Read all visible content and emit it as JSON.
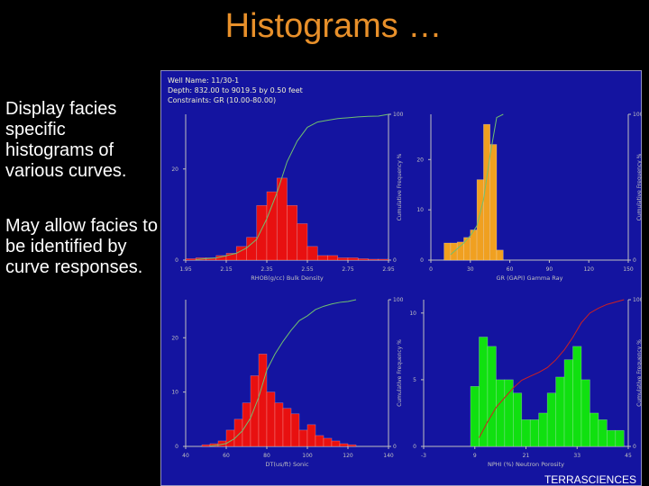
{
  "title": "Histograms …",
  "bullets": [
    "Display facies specific histograms of various curves.",
    "May allow facies to be identified by curve responses."
  ],
  "header": [
    "Well Name:      11/30-1",
    "Depth:  832.00 to 9019.5 by  0.50 feet",
    "Constraints:  GR (10.00-80.00)"
  ],
  "footer": "TERRASCIENCES",
  "chart_data": [
    {
      "type": "histogram",
      "x_label": "RHOB(g/cc)    Bulk Density",
      "y2_label": "Cumulative Frequency %",
      "color": "#e81010",
      "line_color": "#70c070",
      "bins": [
        1.95,
        2.0,
        2.05,
        2.1,
        2.15,
        2.2,
        2.25,
        2.3,
        2.35,
        2.4,
        2.45,
        2.5,
        2.55,
        2.6,
        2.65,
        2.7,
        2.75,
        2.8,
        2.85,
        2.9,
        2.95
      ],
      "counts": [
        0.3,
        0.5,
        0.5,
        1,
        1.5,
        3,
        5,
        12,
        15,
        18,
        12,
        8,
        3,
        1,
        1,
        0.5,
        0.5,
        0.3,
        0.2,
        0.2
      ],
      "cumulative": [
        0.4,
        1,
        1.5,
        3,
        4.7,
        8.3,
        14.2,
        28.4,
        46.2,
        67.5,
        81.7,
        91.1,
        94.7,
        95.9,
        97.1,
        97.6,
        98.2,
        98.6,
        98.8,
        100
      ],
      "xlim": [
        1.95,
        2.95
      ],
      "xticks": [
        1.95,
        2.15,
        2.35,
        2.55,
        2.75,
        2.95
      ],
      "ylim": [
        0,
        32
      ],
      "yticks": [
        0,
        20
      ],
      "y2lim": [
        0,
        100
      ],
      "y2ticks": [
        0,
        100
      ]
    },
    {
      "type": "histogram",
      "x_label": "GR (GAPI)    Gamma Ray",
      "y2_label": "Cumulative Frequency %",
      "color": "#f0a020",
      "line_color": "#70c070",
      "bins": [
        10,
        15,
        20,
        25,
        30,
        35,
        40,
        45,
        50,
        55
      ],
      "counts": [
        3.4,
        3.4,
        3.6,
        4.5,
        6,
        16,
        27,
        23,
        2
      ],
      "cumulative": [
        3.8,
        7.7,
        11.7,
        16.8,
        23.5,
        41.5,
        71.9,
        97.8,
        100
      ],
      "xlim": [
        0,
        150
      ],
      "xticks": [
        0,
        30,
        60,
        90,
        120,
        150
      ],
      "ylim": [
        0,
        29
      ],
      "yticks": [
        0,
        10,
        20
      ],
      "y2lim": [
        0,
        100
      ],
      "y2ticks": [
        0,
        100
      ]
    },
    {
      "type": "histogram",
      "x_label": "DT(us/ft)    Sonic",
      "y2_label": "Cumulative Frequency %",
      "color": "#e81010",
      "line_color": "#70c070",
      "bins": [
        48,
        52,
        56,
        60,
        64,
        68,
        72,
        76,
        80,
        84,
        88,
        92,
        96,
        100,
        104,
        108,
        112,
        116,
        120,
        124
      ],
      "counts": [
        0.3,
        0.5,
        1,
        3,
        5,
        8,
        13,
        17,
        10,
        8,
        7,
        6,
        3,
        4,
        2,
        1.5,
        1,
        0.5,
        0.3
      ],
      "cumulative": [
        0.3,
        0.9,
        2,
        5.2,
        10.7,
        19.4,
        33.5,
        52,
        62.9,
        71.6,
        79.2,
        85.7,
        89,
        93.3,
        95.5,
        97.1,
        98.2,
        98.8,
        100
      ],
      "xlim": [
        40,
        140
      ],
      "xticks": [
        40,
        60,
        80,
        100,
        120,
        140
      ],
      "ylim": [
        0,
        27
      ],
      "yticks": [
        0,
        10,
        20
      ],
      "y2lim": [
        0,
        100
      ],
      "y2ticks": [
        0,
        100
      ]
    },
    {
      "type": "histogram",
      "x_label": "NPHI (%)    Neutron Porosity",
      "y2_label": "Cumulative Frequency %",
      "color": "#10e010",
      "line_color": "#d02020",
      "bins": [
        8,
        10,
        12,
        14,
        16,
        18,
        20,
        22,
        24,
        26,
        28,
        30,
        32,
        34,
        36,
        38,
        40,
        42,
        44
      ],
      "counts": [
        4.5,
        8.2,
        7.5,
        5,
        5,
        4,
        2,
        2,
        2.5,
        4,
        5.2,
        6.5,
        7.5,
        5,
        2.5,
        2,
        1.2,
        1.2
      ],
      "cumulative": [
        5.9,
        16.7,
        26.6,
        33.2,
        39.8,
        45.1,
        47.8,
        50.4,
        53.7,
        59,
        65.8,
        74.4,
        84.3,
        90.9,
        94.2,
        96.8,
        98.4,
        100
      ],
      "xlim": [
        -3,
        45
      ],
      "xticks": [
        -3,
        9,
        21,
        33,
        45
      ],
      "ylim": [
        0,
        11
      ],
      "yticks": [
        0,
        5,
        10
      ],
      "y2lim": [
        0,
        100
      ],
      "y2ticks": [
        0,
        100
      ]
    }
  ]
}
